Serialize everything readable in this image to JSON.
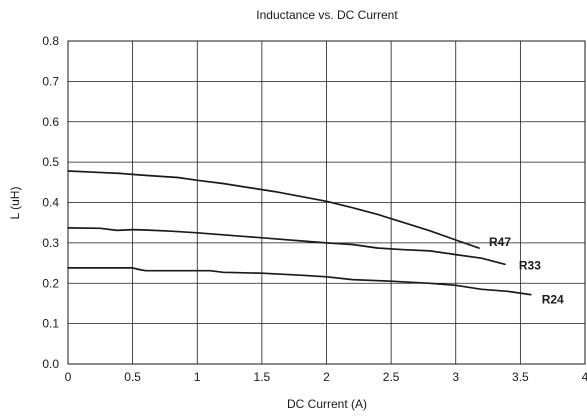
{
  "chart_data": {
    "type": "line",
    "title": "Inductance vs. DC Current",
    "xlabel": "DC Current (A)",
    "ylabel": "L (uH)",
    "xlim": [
      0,
      4
    ],
    "ylim": [
      0,
      0.8
    ],
    "x_ticks": [
      "0",
      "0.5",
      "1",
      "1.5",
      "2",
      "2.5",
      "3",
      "3.5",
      "4"
    ],
    "y_ticks": [
      "0.0",
      "0.1",
      "0.2",
      "0.3",
      "0.4",
      "0.5",
      "0.6",
      "0.7",
      "0.8"
    ],
    "grid": true,
    "legend": "none",
    "line_color": "#1a1a1a",
    "grid_color": "#1a1a1a",
    "series": [
      {
        "name": "R47",
        "x": [
          0,
          0.2,
          0.4,
          0.6,
          0.85,
          1.0,
          1.2,
          1.4,
          1.6,
          1.8,
          2.0,
          2.2,
          2.4,
          2.6,
          2.8,
          3.0,
          3.18
        ],
        "y": [
          0.478,
          0.475,
          0.472,
          0.467,
          0.462,
          0.455,
          0.447,
          0.437,
          0.427,
          0.415,
          0.403,
          0.387,
          0.37,
          0.35,
          0.33,
          0.307,
          0.287
        ]
      },
      {
        "name": "R33",
        "x": [
          0,
          0.25,
          0.38,
          0.5,
          0.6,
          0.8,
          1.0,
          1.2,
          1.4,
          1.6,
          1.8,
          2.0,
          2.2,
          2.4,
          2.6,
          2.8,
          3.0,
          3.2,
          3.38
        ],
        "y": [
          0.337,
          0.336,
          0.331,
          0.333,
          0.332,
          0.329,
          0.325,
          0.32,
          0.315,
          0.31,
          0.305,
          0.3,
          0.296,
          0.287,
          0.283,
          0.28,
          0.271,
          0.262,
          0.247
        ]
      },
      {
        "name": "R24",
        "x": [
          0,
          0.5,
          0.55,
          0.6,
          0.8,
          1.1,
          1.2,
          1.5,
          1.8,
          2.0,
          2.2,
          2.5,
          2.8,
          3.0,
          3.2,
          3.4,
          3.58
        ],
        "y": [
          0.238,
          0.238,
          0.234,
          0.231,
          0.231,
          0.231,
          0.227,
          0.225,
          0.22,
          0.216,
          0.209,
          0.205,
          0.2,
          0.195,
          0.185,
          0.18,
          0.172
        ]
      }
    ]
  }
}
